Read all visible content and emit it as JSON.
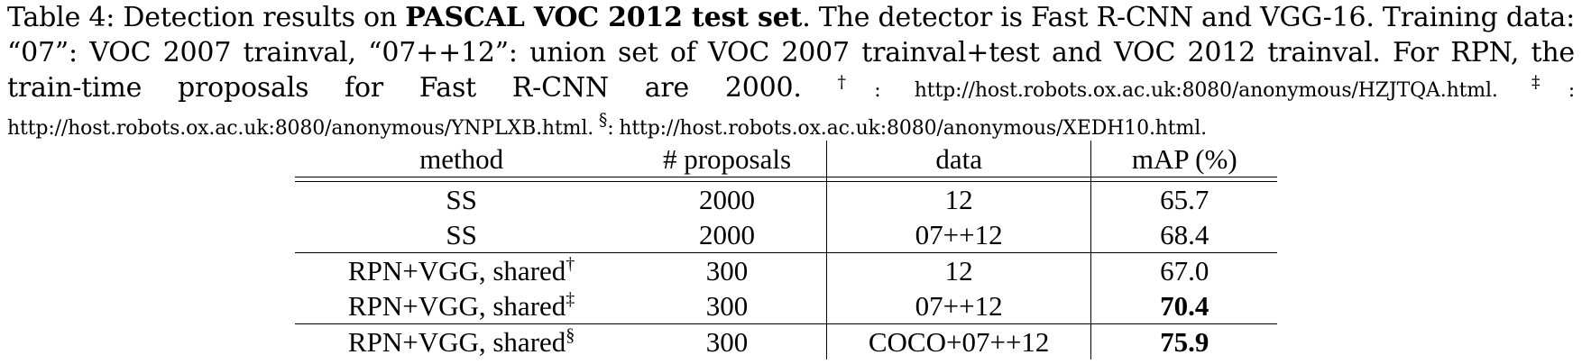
{
  "caption": {
    "label": "Table 4: Detection results on ",
    "bold_title": "PASCAL VOC 2012 test set",
    "text1": ". The detector is Fast R-CNN and VGG-16. Training data: “07”: VOC 2007 trainval, “07++12”: union set of VOC 2007 trainval+test and VOC 2012 trainval. For RPN, the train-time proposals for Fast R-CNN are 2000. ",
    "mark1": "†",
    "url1": ": http://host.robots.ox.ac.uk:8080/anonymous/HZJTQA.html. ",
    "mark2": "‡",
    "url2": ": http://host.robots.ox.ac.uk:8080/anonymous/YNPLXB.html. ",
    "mark3": "§",
    "url3": ": http://host.robots.ox.ac.uk:8080/anonymous/XEDH10.html."
  },
  "table": {
    "headers": [
      "method",
      "# proposals",
      "data",
      "mAP (%)"
    ],
    "rows": [
      {
        "method": "SS",
        "mark": "",
        "proposals": "2000",
        "data": "12",
        "map": "65.7"
      },
      {
        "method": "SS",
        "mark": "",
        "proposals": "2000",
        "data": "07++12",
        "map": "68.4"
      },
      {
        "method": "RPN+VGG, shared",
        "mark": "†",
        "proposals": "300",
        "data": "12",
        "map": "67.0"
      },
      {
        "method": "RPN+VGG, shared",
        "mark": "‡",
        "proposals": "300",
        "data": "07++12",
        "map": "70.4"
      },
      {
        "method": "RPN+VGG, shared",
        "mark": "§",
        "proposals": "300",
        "data": "COCO+07++12",
        "map": "75.9"
      }
    ]
  }
}
